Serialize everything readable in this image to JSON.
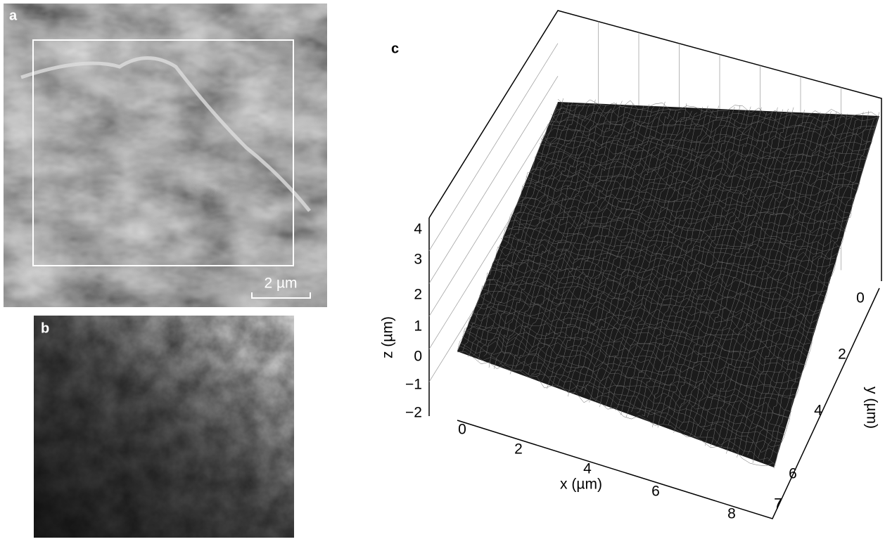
{
  "panels": {
    "a": {
      "label": "a",
      "scale_bar": "2 µm"
    },
    "b": {
      "label": "b"
    },
    "c": {
      "label": "c",
      "z_axis": {
        "title": "z (µm)",
        "ticks": [
          "4",
          "3",
          "2",
          "1",
          "0",
          "−1",
          "−2"
        ]
      },
      "x_axis": {
        "title": "x (µm)",
        "ticks": [
          "0",
          "2",
          "4",
          "6",
          "8"
        ]
      },
      "y_axis": {
        "title": "y (µm)",
        "ticks": [
          "0",
          "2",
          "4",
          "6",
          "7"
        ]
      }
    }
  }
}
